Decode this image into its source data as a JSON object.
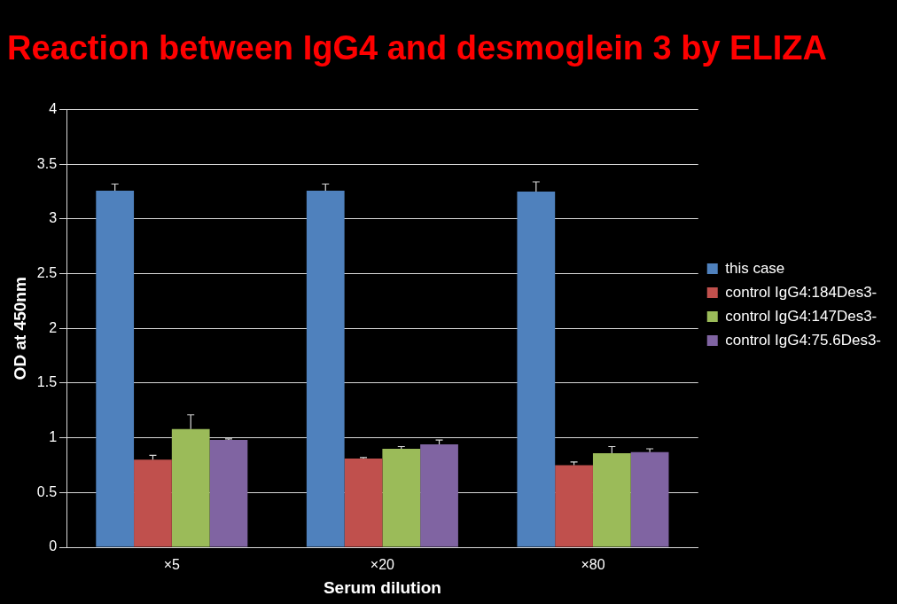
{
  "chart_data": {
    "type": "bar",
    "title": "Reaction between IgG4 and desmoglein 3 by ELIZA",
    "xlabel": "Serum dilution",
    "ylabel": "OD at 450nm",
    "categories": [
      "×5",
      "×20",
      "×80"
    ],
    "series": [
      {
        "name": "this case",
        "color": "#4f81bd",
        "values": [
          3.26,
          3.26,
          3.25
        ],
        "errors": [
          [
            3.26,
            3.32
          ],
          [
            3.26,
            3.32
          ],
          [
            3.25,
            3.34
          ]
        ]
      },
      {
        "name": "control IgG4:184Des3-",
        "color": "#c0504d",
        "values": [
          0.8,
          0.81,
          0.75
        ],
        "errors": [
          [
            0.8,
            0.84
          ],
          [
            0.81,
            0.82
          ],
          [
            0.75,
            0.78
          ]
        ]
      },
      {
        "name": "control IgG4:147Des3-",
        "color": "#9bbb59",
        "values": [
          1.08,
          0.9,
          0.86
        ],
        "errors": [
          [
            1.08,
            1.21
          ],
          [
            0.9,
            0.92
          ],
          [
            0.86,
            0.92
          ]
        ]
      },
      {
        "name": "control IgG4:75.6Des3-",
        "color": "#8064a2",
        "values": [
          0.98,
          0.94,
          0.87
        ],
        "errors": [
          [
            0.98,
            0.99
          ],
          [
            0.94,
            0.98
          ],
          [
            0.87,
            0.9
          ]
        ]
      }
    ],
    "ylim": [
      0,
      4
    ],
    "yticks": [
      0,
      0.5,
      1,
      1.5,
      2,
      2.5,
      3,
      3.5,
      4
    ],
    "grid": "y",
    "legend": "right"
  }
}
